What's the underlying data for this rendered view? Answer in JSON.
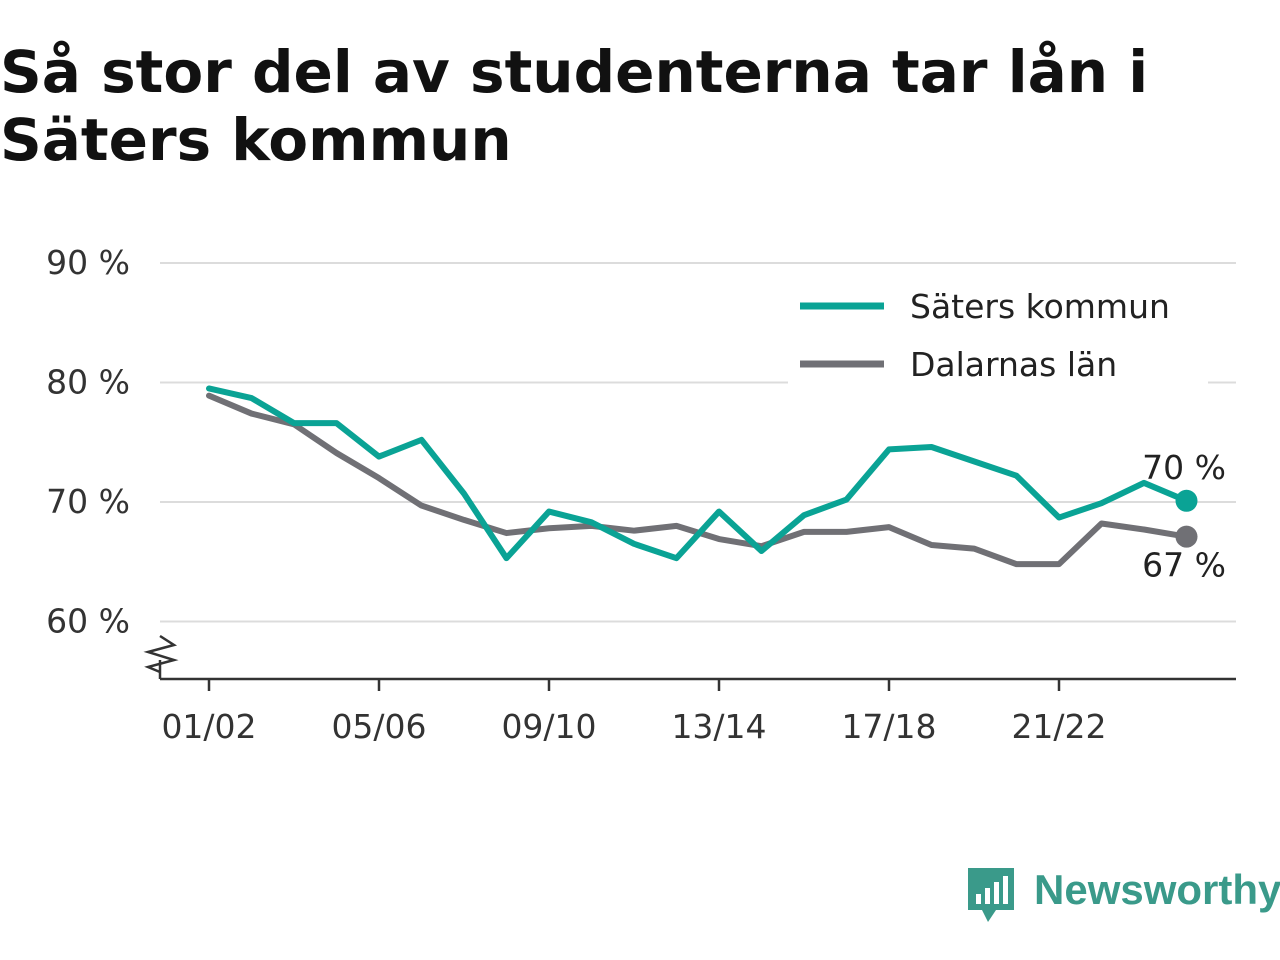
{
  "title": "Så stor del av studenterna tar lån i Säters kommun",
  "brand": {
    "name": "Newsworthy",
    "icon": "bar-chart-speech-bubble-icon",
    "color": "#3a9a8a"
  },
  "chart_data": {
    "type": "line",
    "title": "Så stor del av studenterna tar lån i Säters kommun",
    "xlabel": "",
    "ylabel": "",
    "x": [
      "01/02",
      "02/03",
      "03/04",
      "04/05",
      "05/06",
      "06/07",
      "07/08",
      "08/09",
      "09/10",
      "10/11",
      "11/12",
      "12/13",
      "13/14",
      "14/15",
      "15/16",
      "16/17",
      "17/18",
      "18/19",
      "19/20",
      "20/21",
      "21/22",
      "22/23",
      "23/24",
      "24/25"
    ],
    "x_tick_labels": [
      "01/02",
      "05/06",
      "09/10",
      "13/14",
      "17/18",
      "21/22"
    ],
    "y_tick_values": [
      60,
      70,
      80,
      90
    ],
    "y_tick_labels": [
      "60 %",
      "70 %",
      "80 %",
      "90 %"
    ],
    "ylim": [
      55,
      90
    ],
    "y_axis_break": true,
    "grid": true,
    "legend": "top-right",
    "series": [
      {
        "name": "Säters kommun",
        "color": "#0aa395",
        "values": [
          79.5,
          78.7,
          76.6,
          76.6,
          73.8,
          75.2,
          70.7,
          65.3,
          69.2,
          68.3,
          66.5,
          65.3,
          69.2,
          65.9,
          68.9,
          70.2,
          74.4,
          74.6,
          73.4,
          72.2,
          68.7,
          69.9,
          71.6,
          70.1
        ],
        "end_label": "70 %"
      },
      {
        "name": "Dalarnas län",
        "color": "#707075",
        "values": [
          78.9,
          77.4,
          76.5,
          74.1,
          72.0,
          69.7,
          68.5,
          67.4,
          67.8,
          68.0,
          67.6,
          68.0,
          66.9,
          66.3,
          67.5,
          67.5,
          67.9,
          66.4,
          66.1,
          64.8,
          64.8,
          68.2,
          67.7,
          67.1
        ],
        "end_label": "67 %"
      }
    ]
  }
}
